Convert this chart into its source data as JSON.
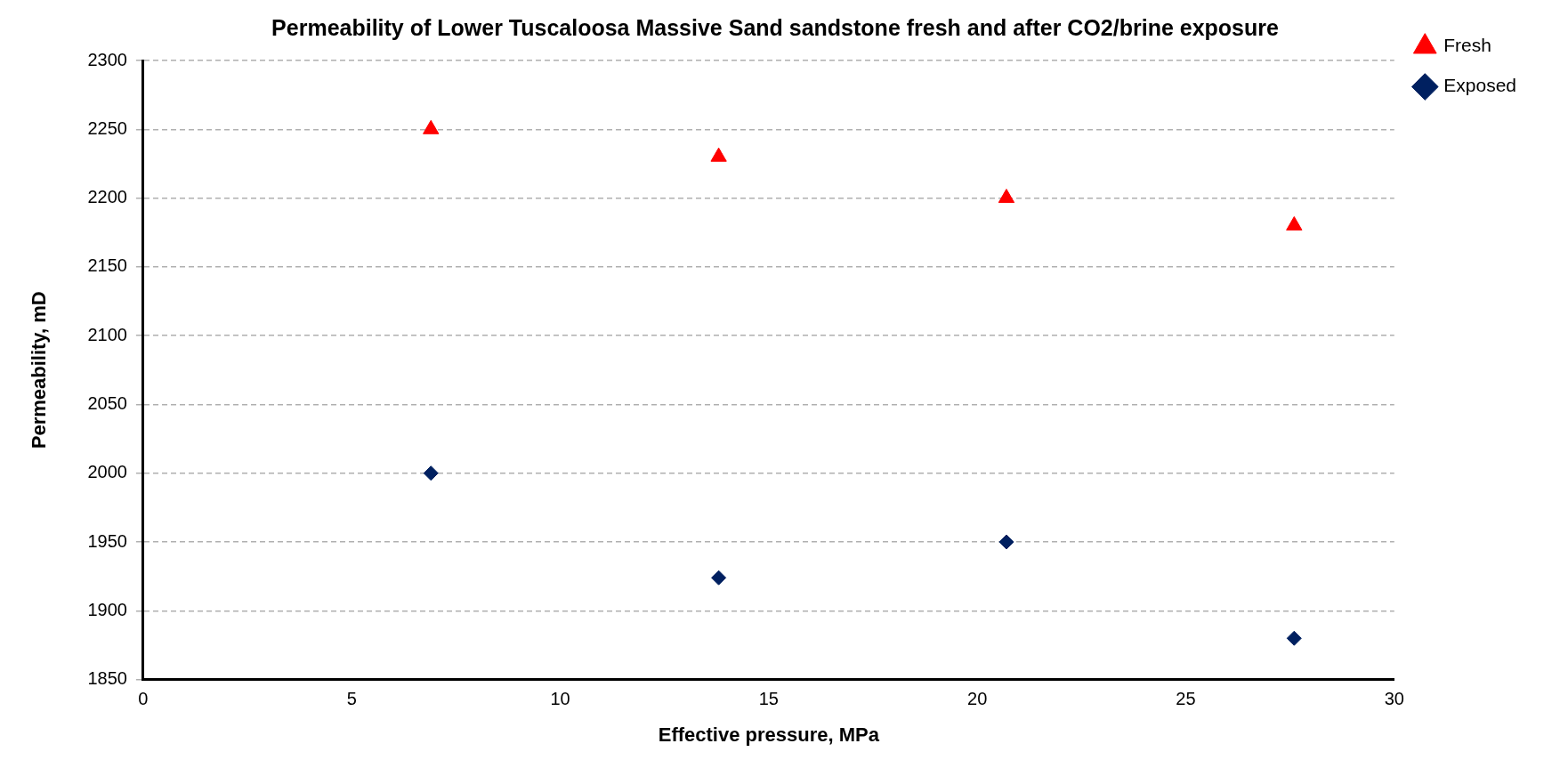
{
  "chart_data": {
    "type": "scatter",
    "title": "Permeability of Lower Tuscaloosa Massive Sand sandstone fresh and after CO2/brine exposure",
    "xlabel": "Effective pressure, MPa",
    "ylabel": "Permeability, mD",
    "series": [
      {
        "name": "Fresh",
        "color": "#ff0000",
        "marker": "triangle",
        "x": [
          6.9,
          13.8,
          20.7,
          27.6
        ],
        "values": [
          2250,
          2230,
          2200,
          2180
        ]
      },
      {
        "name": "Exposed",
        "color": "#002060",
        "marker": "diamond",
        "x": [
          6.9,
          13.8,
          20.7,
          27.6
        ],
        "values": [
          2000,
          1924,
          1950,
          1880
        ]
      }
    ],
    "xlim": [
      0,
      30
    ],
    "xticks": [
      0,
      5,
      10,
      15,
      20,
      25,
      30
    ],
    "ylim": [
      1850,
      2300
    ],
    "yticks": [
      1850,
      1900,
      1950,
      2000,
      2050,
      2100,
      2150,
      2200,
      2250,
      2300
    ],
    "grid": "y",
    "legend": "top right"
  }
}
